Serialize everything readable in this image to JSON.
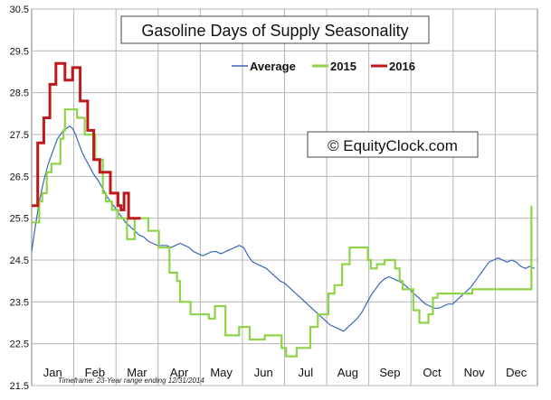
{
  "chart_data": {
    "type": "line",
    "title": "Gasoline Days of Supply Seasonality",
    "watermark": "© EquityClock.com",
    "footnote": "Timeframe: 23-Year range ending 12/31/2014",
    "xlabel": "",
    "ylabel": "",
    "categories": [
      "Jan",
      "Feb",
      "Mar",
      "Apr",
      "May",
      "Jun",
      "Jul",
      "Aug",
      "Sep",
      "Oct",
      "Nov",
      "Dec"
    ],
    "ylim": [
      21.5,
      30.5
    ],
    "yticks": [
      "21.5",
      "22.5",
      "23.5",
      "24.5",
      "25.5",
      "26.5",
      "27.5",
      "28.5",
      "29.5",
      "30.5"
    ],
    "grid": true,
    "legend_position": "top-center",
    "series": [
      {
        "name": "Average",
        "color": "#3a67b5",
        "points": [
          [
            0,
            24.7
          ],
          [
            2,
            25.2
          ],
          [
            5,
            25.9
          ],
          [
            8,
            26.4
          ],
          [
            11,
            26.8
          ],
          [
            14,
            27.1
          ],
          [
            17,
            27.4
          ],
          [
            20,
            27.55
          ],
          [
            23,
            27.65
          ],
          [
            25,
            27.7
          ],
          [
            27,
            27.65
          ],
          [
            29,
            27.5
          ],
          [
            31,
            27.3
          ],
          [
            33,
            27.1
          ],
          [
            35,
            26.95
          ],
          [
            38,
            26.75
          ],
          [
            41,
            26.55
          ],
          [
            44,
            26.4
          ],
          [
            47,
            26.2
          ],
          [
            50,
            26.0
          ],
          [
            53,
            25.85
          ],
          [
            56,
            25.7
          ],
          [
            59,
            25.55
          ],
          [
            62,
            25.4
          ],
          [
            65,
            25.3
          ],
          [
            68,
            25.2
          ],
          [
            71,
            25.1
          ],
          [
            74,
            25.05
          ],
          [
            77,
            24.95
          ],
          [
            80,
            24.9
          ],
          [
            83,
            24.85
          ],
          [
            86,
            24.85
          ],
          [
            89,
            24.85
          ],
          [
            92,
            24.8
          ],
          [
            95,
            24.85
          ],
          [
            98,
            24.9
          ],
          [
            101,
            24.85
          ],
          [
            104,
            24.8
          ],
          [
            107,
            24.7
          ],
          [
            110,
            24.65
          ],
          [
            113,
            24.6
          ],
          [
            116,
            24.65
          ],
          [
            119,
            24.7
          ],
          [
            122,
            24.7
          ],
          [
            125,
            24.65
          ],
          [
            128,
            24.7
          ],
          [
            131,
            24.75
          ],
          [
            134,
            24.8
          ],
          [
            137,
            24.85
          ],
          [
            140,
            24.8
          ],
          [
            143,
            24.6
          ],
          [
            146,
            24.45
          ],
          [
            149,
            24.4
          ],
          [
            152,
            24.35
          ],
          [
            155,
            24.3
          ],
          [
            158,
            24.2
          ],
          [
            161,
            24.1
          ],
          [
            164,
            24.0
          ],
          [
            167,
            23.95
          ],
          [
            170,
            23.85
          ],
          [
            173,
            23.75
          ],
          [
            176,
            23.65
          ],
          [
            179,
            23.55
          ],
          [
            182,
            23.45
          ],
          [
            185,
            23.35
          ],
          [
            188,
            23.25
          ],
          [
            191,
            23.15
          ],
          [
            194,
            23.05
          ],
          [
            197,
            22.95
          ],
          [
            200,
            22.9
          ],
          [
            203,
            22.85
          ],
          [
            206,
            22.8
          ],
          [
            209,
            22.9
          ],
          [
            212,
            23.0
          ],
          [
            215,
            23.1
          ],
          [
            218,
            23.25
          ],
          [
            221,
            23.45
          ],
          [
            224,
            23.65
          ],
          [
            227,
            23.8
          ],
          [
            230,
            23.95
          ],
          [
            233,
            24.05
          ],
          [
            236,
            24.1
          ],
          [
            239,
            24.05
          ],
          [
            242,
            24.0
          ],
          [
            245,
            23.95
          ],
          [
            248,
            23.85
          ],
          [
            251,
            23.75
          ],
          [
            254,
            23.65
          ],
          [
            257,
            23.55
          ],
          [
            260,
            23.45
          ],
          [
            263,
            23.4
          ],
          [
            266,
            23.35
          ],
          [
            269,
            23.35
          ],
          [
            272,
            23.4
          ],
          [
            275,
            23.45
          ],
          [
            278,
            23.45
          ],
          [
            281,
            23.55
          ],
          [
            284,
            23.65
          ],
          [
            287,
            23.75
          ],
          [
            290,
            23.85
          ],
          [
            293,
            24.0
          ],
          [
            296,
            24.15
          ],
          [
            299,
            24.3
          ],
          [
            302,
            24.45
          ],
          [
            305,
            24.5
          ],
          [
            308,
            24.55
          ],
          [
            311,
            24.5
          ],
          [
            314,
            24.45
          ],
          [
            317,
            24.5
          ],
          [
            320,
            24.45
          ],
          [
            323,
            24.35
          ],
          [
            326,
            24.3
          ],
          [
            329,
            24.35
          ],
          [
            332,
            24.3
          ]
        ]
      },
      {
        "name": "2015",
        "color": "#8fd34a",
        "points": [
          [
            0,
            25.4
          ],
          [
            5,
            25.4
          ],
          [
            5,
            25.9
          ],
          [
            7,
            25.9
          ],
          [
            7,
            26.1
          ],
          [
            10,
            26.1
          ],
          [
            10,
            26.6
          ],
          [
            13,
            26.6
          ],
          [
            13,
            26.8
          ],
          [
            16,
            26.8
          ],
          [
            16,
            26.8
          ],
          [
            19,
            26.8
          ],
          [
            19,
            27.4
          ],
          [
            21,
            27.4
          ],
          [
            21,
            27.6
          ],
          [
            22,
            27.6
          ],
          [
            22,
            28.1
          ],
          [
            30,
            28.1
          ],
          [
            30,
            27.9
          ],
          [
            35,
            27.9
          ],
          [
            35,
            27.5
          ],
          [
            42,
            27.5
          ],
          [
            42,
            26.9
          ],
          [
            47,
            26.9
          ],
          [
            47,
            26.1
          ],
          [
            49,
            26.1
          ],
          [
            49,
            25.9
          ],
          [
            51,
            25.9
          ],
          [
            51,
            25.9
          ],
          [
            53,
            25.9
          ],
          [
            53,
            25.7
          ],
          [
            57,
            25.7
          ],
          [
            57,
            25.5
          ],
          [
            63,
            25.5
          ],
          [
            63,
            25.0
          ],
          [
            68,
            25.0
          ],
          [
            68,
            25.5
          ],
          [
            77,
            25.5
          ],
          [
            77,
            25.2
          ],
          [
            84,
            25.2
          ],
          [
            84,
            24.8
          ],
          [
            91,
            24.8
          ],
          [
            91,
            24.2
          ],
          [
            96,
            24.2
          ],
          [
            96,
            24.0
          ],
          [
            98,
            24.0
          ],
          [
            98,
            23.5
          ],
          [
            105,
            23.5
          ],
          [
            105,
            23.2
          ],
          [
            117,
            23.2
          ],
          [
            117,
            23.1
          ],
          [
            121,
            23.1
          ],
          [
            121,
            23.4
          ],
          [
            128,
            23.4
          ],
          [
            128,
            22.7
          ],
          [
            137,
            22.7
          ],
          [
            137,
            22.9
          ],
          [
            144,
            22.9
          ],
          [
            144,
            22.6
          ],
          [
            154,
            22.6
          ],
          [
            154,
            22.7
          ],
          [
            165,
            22.7
          ],
          [
            165,
            22.4
          ],
          [
            168,
            22.4
          ],
          [
            168,
            22.2
          ],
          [
            175,
            22.2
          ],
          [
            175,
            22.4
          ],
          [
            184,
            22.4
          ],
          [
            184,
            22.9
          ],
          [
            189,
            22.9
          ],
          [
            189,
            23.2
          ],
          [
            196,
            23.2
          ],
          [
            196,
            23.7
          ],
          [
            200,
            23.7
          ],
          [
            200,
            23.9
          ],
          [
            205,
            23.9
          ],
          [
            205,
            24.4
          ],
          [
            210,
            24.4
          ],
          [
            210,
            24.8
          ],
          [
            222,
            24.8
          ],
          [
            222,
            24.5
          ],
          [
            224,
            24.5
          ],
          [
            224,
            24.3
          ],
          [
            228,
            24.3
          ],
          [
            228,
            24.4
          ],
          [
            233,
            24.4
          ],
          [
            233,
            24.5
          ],
          [
            240,
            24.5
          ],
          [
            240,
            24.3
          ],
          [
            243,
            24.3
          ],
          [
            243,
            24.0
          ],
          [
            245,
            24.0
          ],
          [
            245,
            23.8
          ],
          [
            252,
            23.8
          ],
          [
            252,
            23.3
          ],
          [
            256,
            23.3
          ],
          [
            256,
            23.0
          ],
          [
            262,
            23.0
          ],
          [
            262,
            23.2
          ],
          [
            265,
            23.2
          ],
          [
            265,
            23.6
          ],
          [
            268,
            23.6
          ],
          [
            268,
            23.7
          ],
          [
            277,
            23.7
          ],
          [
            277,
            23.7
          ],
          [
            291,
            23.7
          ],
          [
            291,
            23.8
          ],
          [
            304,
            23.8
          ],
          [
            304,
            23.8
          ],
          [
            330,
            23.8
          ],
          [
            330,
            25.8
          ]
        ]
      },
      {
        "name": "2016",
        "color": "#c0191b",
        "points": [
          [
            0,
            25.8
          ],
          [
            4,
            25.8
          ],
          [
            4,
            27.3
          ],
          [
            8,
            27.3
          ],
          [
            8,
            27.9
          ],
          [
            12,
            27.9
          ],
          [
            12,
            28.7
          ],
          [
            16,
            28.7
          ],
          [
            16,
            29.2
          ],
          [
            22,
            29.2
          ],
          [
            22,
            28.8
          ],
          [
            27,
            28.8
          ],
          [
            27,
            29.1
          ],
          [
            32,
            29.1
          ],
          [
            32,
            28.3
          ],
          [
            37,
            28.3
          ],
          [
            37,
            27.6
          ],
          [
            41,
            27.6
          ],
          [
            41,
            26.9
          ],
          [
            45,
            26.9
          ],
          [
            45,
            26.6
          ],
          [
            48,
            26.6
          ],
          [
            48,
            26.6
          ],
          [
            52,
            26.6
          ],
          [
            52,
            26.1
          ],
          [
            57,
            26.1
          ],
          [
            57,
            25.8
          ],
          [
            59,
            25.8
          ],
          [
            59,
            25.7
          ],
          [
            61,
            25.7
          ],
          [
            61,
            26.1
          ],
          [
            64,
            26.1
          ],
          [
            64,
            25.5
          ],
          [
            72,
            25.5
          ]
        ]
      }
    ]
  }
}
